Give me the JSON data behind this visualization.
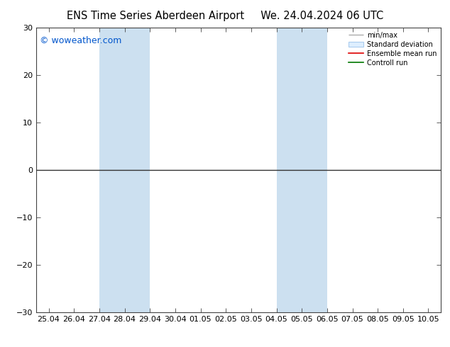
{
  "title_left": "ENS Time Series Aberdeen Airport",
  "title_right": "We. 24.04.2024 06 UTC",
  "ylim": [
    -30,
    30
  ],
  "yticks": [
    -30,
    -20,
    -10,
    0,
    10,
    20,
    30
  ],
  "xtick_labels": [
    "25.04",
    "26.04",
    "27.04",
    "28.04",
    "29.04",
    "30.04",
    "01.05",
    "02.05",
    "03.05",
    "04.05",
    "05.05",
    "06.05",
    "07.05",
    "08.05",
    "09.05",
    "10.05"
  ],
  "xtick_positions": [
    0,
    1,
    2,
    3,
    4,
    5,
    6,
    7,
    8,
    9,
    10,
    11,
    12,
    13,
    14,
    15
  ],
  "xlim": [
    -0.5,
    15.5
  ],
  "shaded_bands": [
    {
      "xmin": 2.0,
      "xmax": 4.0
    },
    {
      "xmin": 9.0,
      "xmax": 11.0
    }
  ],
  "shade_color": "#cce0f0",
  "watermark": "© woweather.com",
  "watermark_color": "#0055cc",
  "hline_y": 0,
  "hline_color": "#333333",
  "legend_labels": [
    "min/max",
    "Standard deviation",
    "Ensemble mean run",
    "Controll run"
  ],
  "legend_colors": [
    "#aaaaaa",
    "#cccccc",
    "#dd0000",
    "#007700"
  ],
  "bg_color": "#ffffff",
  "axis_color": "#444444",
  "title_fontsize": 10.5,
  "tick_fontsize": 8,
  "watermark_fontsize": 9
}
